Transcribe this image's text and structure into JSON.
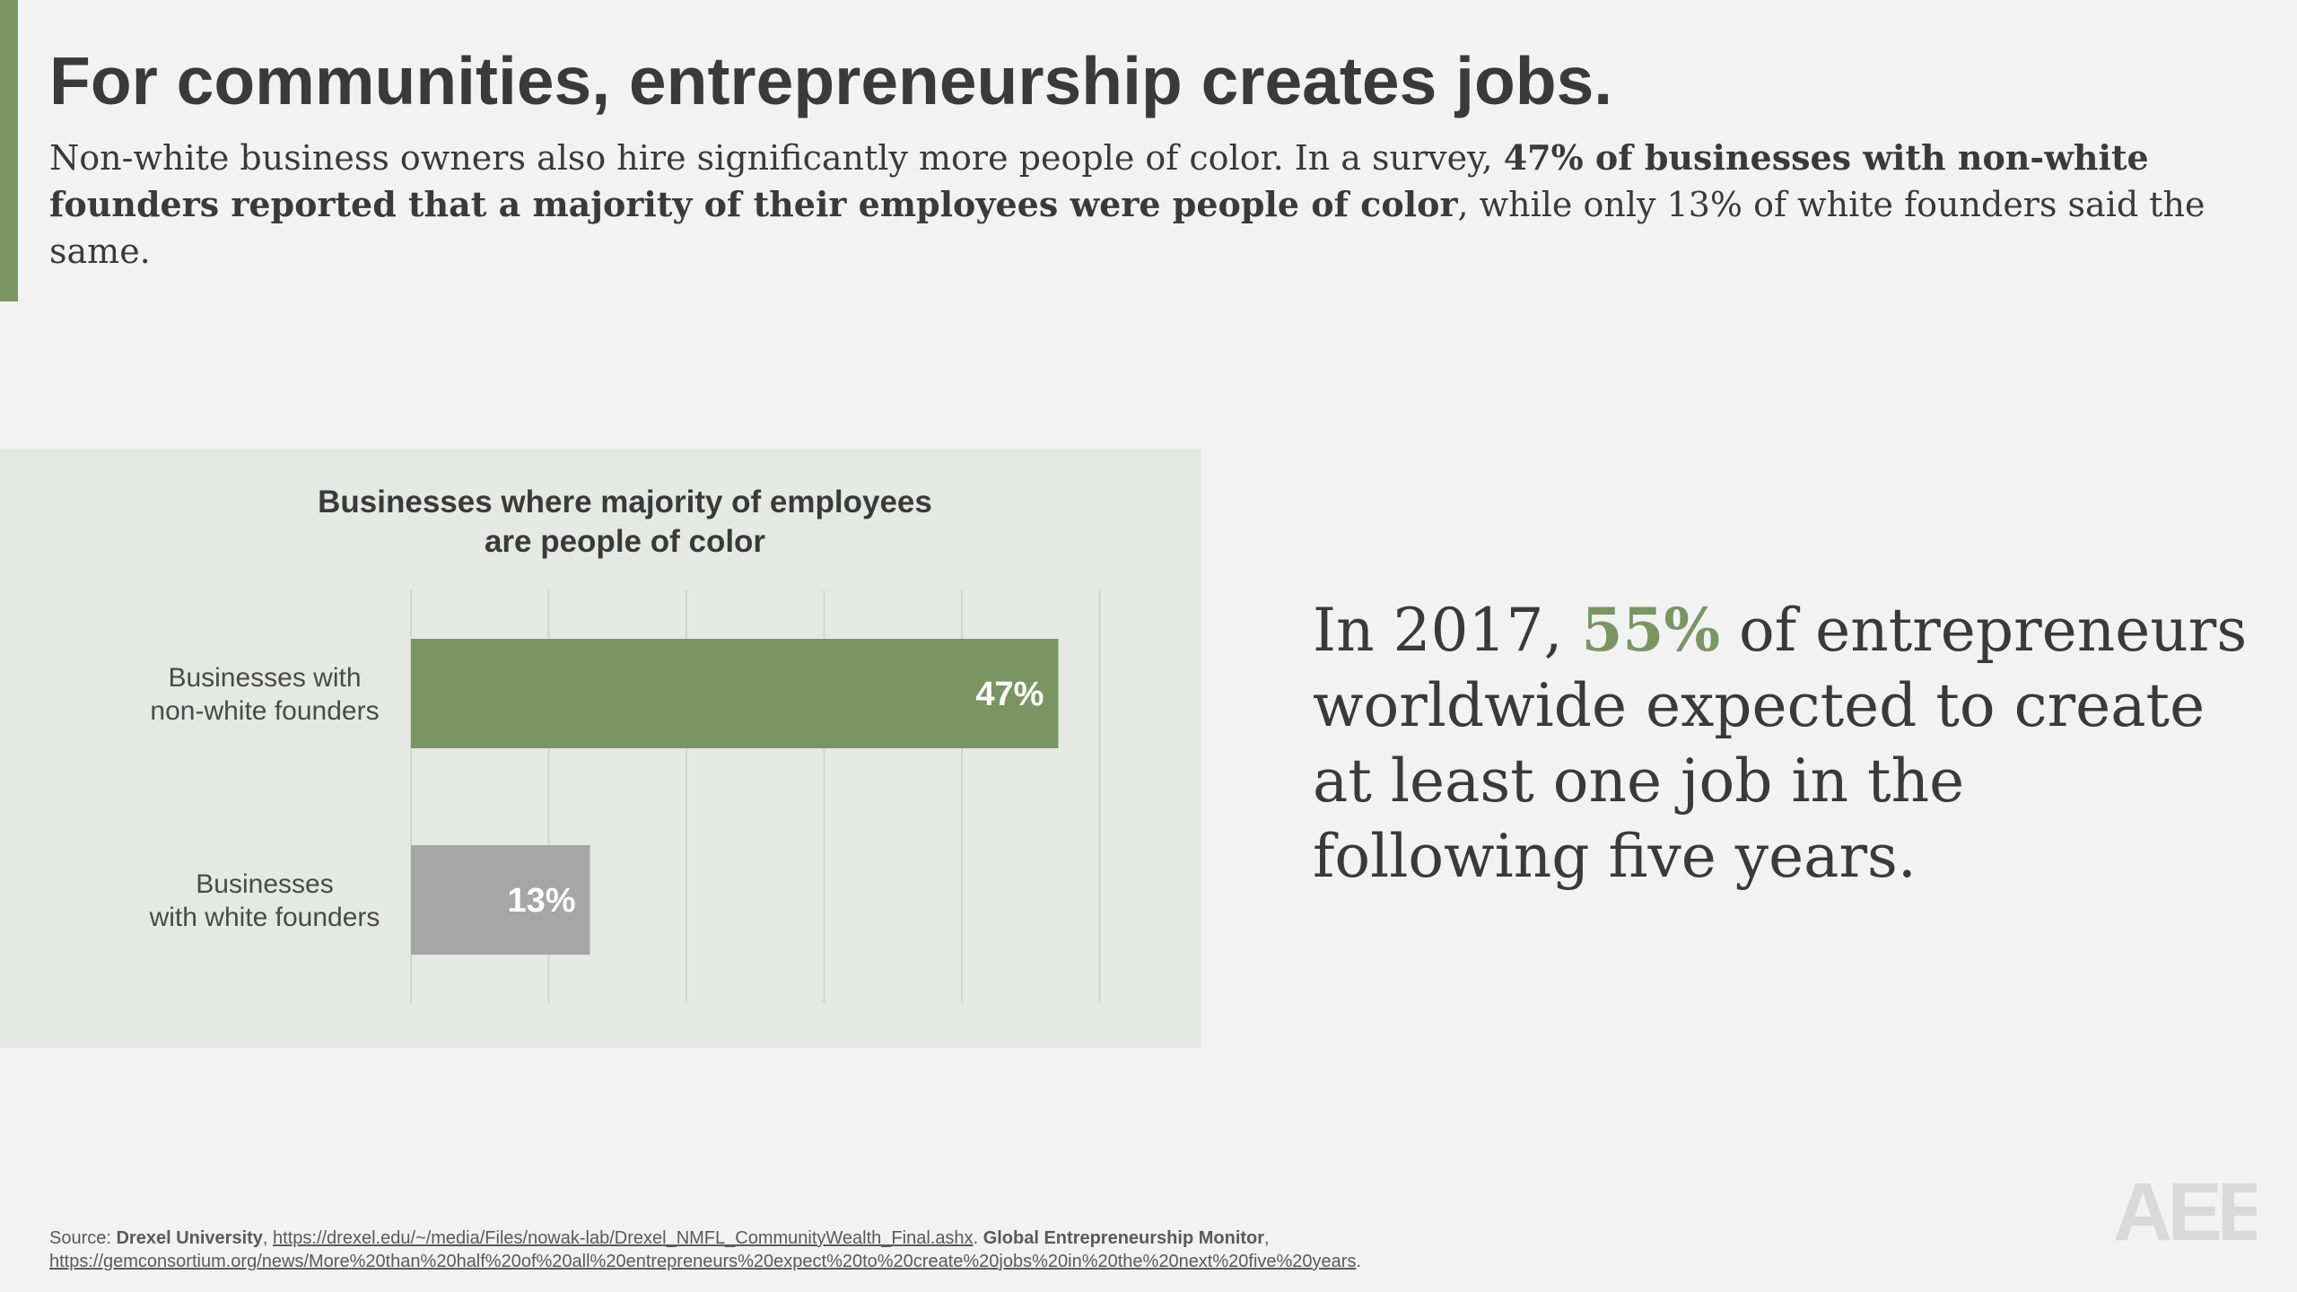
{
  "slide": {
    "title": "For communities, entrepreneurship creates jobs.",
    "intro_plain_1": "Non-white business owners also hire significantly more people of color. In a survey, ",
    "intro_bold": "47% of businesses with non-white founders reported that a majority of their employees were people of color",
    "intro_plain_2": ", while only 13% of white founders said the same."
  },
  "colors": {
    "accent": "#7a9563",
    "bar_primary": "#7a9563",
    "bar_secondary": "#a6a6a6",
    "panel": "#e6e8e3"
  },
  "chart_data": {
    "type": "bar",
    "orientation": "horizontal",
    "title_lines": [
      "Businesses where majority of employees",
      "are people of color"
    ],
    "categories": [
      [
        "Businesses with",
        "non-white founders"
      ],
      [
        "Businesses",
        "with white founders"
      ]
    ],
    "values": [
      47,
      13
    ],
    "value_labels": [
      "47%",
      "13%"
    ],
    "unit": "%",
    "xlim": [
      0,
      50
    ],
    "grid": true,
    "grid_step": 10
  },
  "callout": {
    "part1": "In 2017, ",
    "highlight": "55%",
    "part2": " of entrepreneurs worldwide expected to create at least one job in the following five years."
  },
  "source": {
    "label": "Source: ",
    "org1": "Drexel University",
    "sep1": ", ",
    "url1": "https://drexel.edu/~/media/Files/nowak-lab/Drexel_NMFL_CommunityWealth_Final.ashx",
    "sep2": ". ",
    "org2": "Global Entrepreneurship Monitor",
    "sep3": ",",
    "url2": "https://gemconsortium.org/news/More%20than%20half%20of%20all%20entrepreneurs%20expect%20to%20create%20jobs%20in%20the%20next%20five%20years",
    "end": "."
  },
  "logo": {
    "text": "AEE"
  }
}
